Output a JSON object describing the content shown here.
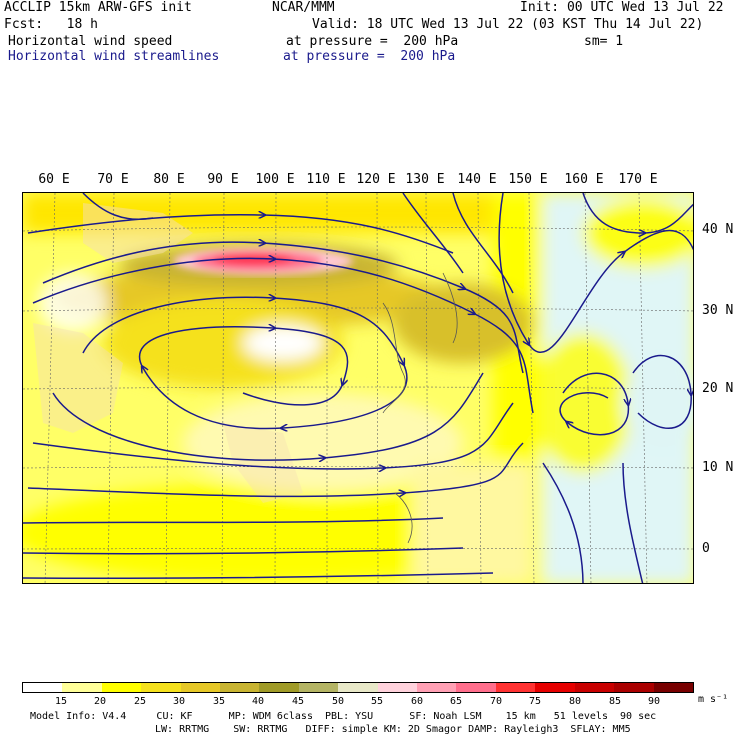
{
  "header": {
    "title_left": "ACCLIP 15km ARW-GFS init",
    "center": "NCAR/MMM",
    "init": "Init: 00 UTC Wed 13 Jul 22",
    "fcst": "Fcst:   18 h",
    "valid": "Valid: 18 UTC Wed 13 Jul 22 (03 KST Thu 14 Jul 22)",
    "field1_name": "Horizontal wind speed",
    "field1_level": "at pressure =  200 hPa",
    "smoothing": "sm= 1",
    "field2_name": "Horizontal wind streamlines",
    "field2_level": "at pressure =  200 hPa"
  },
  "map": {
    "lon_labels": [
      "60 E",
      "70 E",
      "80 E",
      "90 E",
      "100 E",
      "110 E",
      "120 E",
      "130 E",
      "140 E",
      "150 E",
      "160 E",
      "170 E"
    ],
    "lat_labels": [
      "40 N",
      "30 N",
      "20 N",
      "10 N",
      "0"
    ],
    "lat_values": [
      40,
      30,
      20,
      10,
      0
    ],
    "lon_values": [
      60,
      70,
      80,
      90,
      100,
      110,
      120,
      130,
      140,
      150,
      160,
      170
    ],
    "streamline_color": "#1a1a8c",
    "land_color": "#f5deb3"
  },
  "colorbar": {
    "labels": [
      "15",
      "20",
      "25",
      "30",
      "35",
      "40",
      "45",
      "50",
      "55",
      "60",
      "65",
      "70",
      "75",
      "80",
      "85",
      "90"
    ],
    "colors": [
      "#ffffff",
      "#ffff99",
      "#ffff00",
      "#f5e11e",
      "#e6c828",
      "#c8b432",
      "#a09b28",
      "#b4b464",
      "#e8e8c8",
      "#ffd2dc",
      "#ffa0b4",
      "#ff6e8c",
      "#ff3232",
      "#e60000",
      "#c80000",
      "#aa0000",
      "#780000"
    ],
    "unit": "m s⁻¹"
  },
  "footer": {
    "line1": "Model Info: V4.4     CU: KF      MP: WDM 6class  PBL: YSU      SF: Noah LSM    15 km   51 levels  90 sec",
    "line2": "LW: RRTMG    SW: RRTMG   DIFF: simple KM: 2D Smagor DAMP: Rayleigh3  SFLAY: MM5"
  }
}
